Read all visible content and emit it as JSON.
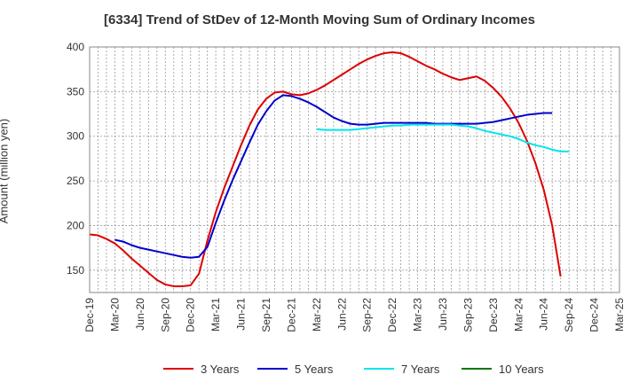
{
  "chart_data": {
    "type": "line",
    "title": "[6334]  Trend of StDev of 12-Month Moving Sum of Ordinary Incomes",
    "xlabel": "",
    "ylabel": "Amount (million yen)",
    "ylim": [
      125,
      400
    ],
    "yticks": [
      150,
      200,
      250,
      300,
      350,
      400
    ],
    "x_categories": [
      "Dec-19",
      "Mar-20",
      "Jun-20",
      "Sep-20",
      "Dec-20",
      "Mar-21",
      "Jun-21",
      "Sep-21",
      "Dec-21",
      "Mar-22",
      "Jun-22",
      "Sep-22",
      "Dec-22",
      "Mar-23",
      "Jun-23",
      "Sep-23",
      "Dec-23",
      "Mar-24",
      "Jun-24",
      "Sep-24",
      "Dec-24",
      "Mar-25"
    ],
    "grid": true,
    "legend_position": "bottom",
    "series": [
      {
        "name": "3 Years",
        "color": "#dd0000",
        "start_index": 0,
        "values": [
          190,
          189,
          185,
          180,
          172,
          163,
          155,
          147,
          139,
          134,
          132,
          132,
          133,
          146,
          183,
          215,
          242,
          266,
          290,
          312,
          330,
          342,
          349,
          350,
          347,
          346,
          348,
          352,
          357,
          363,
          369,
          375,
          381,
          386,
          390,
          393,
          394,
          393,
          389,
          384,
          379,
          375,
          370,
          366,
          363,
          365,
          367,
          362,
          354,
          344,
          331,
          315,
          295,
          270,
          240,
          200,
          143
        ]
      },
      {
        "name": "5 Years",
        "color": "#0000cc",
        "start_index": 3,
        "values": [
          184,
          182,
          178,
          175,
          173,
          171,
          169,
          167,
          165,
          164,
          165,
          176,
          203,
          228,
          251,
          272,
          293,
          313,
          328,
          340,
          346,
          345,
          342,
          338,
          333,
          327,
          321,
          317,
          314,
          313,
          313,
          314,
          315,
          315,
          315,
          315,
          315,
          315,
          314,
          314,
          314,
          314,
          314,
          314,
          315,
          316,
          318,
          320,
          322,
          324,
          325,
          326,
          326
        ]
      },
      {
        "name": "7 Years",
        "color": "#00e5ee",
        "start_index": 27,
        "values": [
          308,
          307,
          307,
          307,
          307,
          308,
          309,
          310,
          311,
          312,
          312,
          313,
          313,
          313,
          313,
          313,
          313,
          312,
          311,
          309,
          306,
          304,
          302,
          300,
          297,
          293,
          290,
          288,
          285,
          283,
          283
        ]
      },
      {
        "name": "10 Years",
        "color": "#007700",
        "start_index": 0,
        "values": []
      }
    ]
  }
}
